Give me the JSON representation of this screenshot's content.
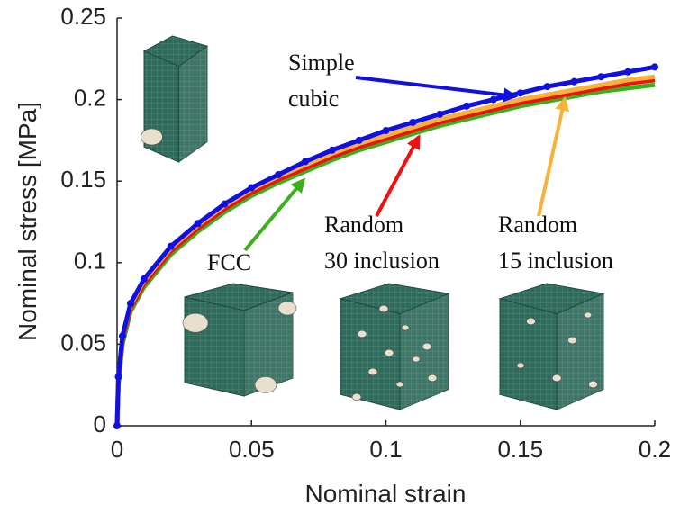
{
  "chart_data": {
    "type": "line",
    "xlabel": "Nominal strain",
    "ylabel": "Nominal stress [MPa]",
    "x": [
      0,
      0.0005,
      0.002,
      0.005,
      0.01,
      0.02,
      0.03,
      0.04,
      0.05,
      0.06,
      0.07,
      0.08,
      0.09,
      0.1,
      0.11,
      0.12,
      0.13,
      0.14,
      0.15,
      0.16,
      0.17,
      0.18,
      0.19,
      0.2
    ],
    "series": [
      {
        "color": "#1010e0",
        "marker": true,
        "values": [
          0,
          0.03,
          0.055,
          0.075,
          0.09,
          0.11,
          0.124,
          0.136,
          0.146,
          0.154,
          0.162,
          0.169,
          0.175,
          0.181,
          0.186,
          0.191,
          0.196,
          0.2,
          0.204,
          0.208,
          0.211,
          0.214,
          0.217,
          0.22
        ]
      },
      {
        "color": "#f7b23b",
        "marker": false,
        "values": [
          0,
          0.03,
          0.055,
          0.074,
          0.089,
          0.109,
          0.123,
          0.135,
          0.145,
          0.153,
          0.16,
          0.167,
          0.173,
          0.178,
          0.183,
          0.188,
          0.192,
          0.196,
          0.2,
          0.203,
          0.206,
          0.209,
          0.212,
          0.214
        ]
      },
      {
        "color": "#f01010",
        "marker": false,
        "values": [
          0,
          0.028,
          0.053,
          0.072,
          0.087,
          0.107,
          0.121,
          0.133,
          0.143,
          0.151,
          0.158,
          0.165,
          0.171,
          0.176,
          0.181,
          0.186,
          0.19,
          0.194,
          0.198,
          0.201,
          0.204,
          0.207,
          0.21,
          0.212
        ]
      },
      {
        "color": "#3ab01c",
        "marker": false,
        "values": [
          0,
          0.025,
          0.05,
          0.07,
          0.085,
          0.105,
          0.119,
          0.131,
          0.141,
          0.149,
          0.156,
          0.163,
          0.169,
          0.174,
          0.179,
          0.184,
          0.188,
          0.192,
          0.196,
          0.199,
          0.202,
          0.205,
          0.207,
          0.209
        ]
      }
    ],
    "xlim": [
      0,
      0.2
    ],
    "xticks": [
      0,
      0.05,
      0.1,
      0.15,
      0.2
    ],
    "ylim": [
      0,
      0.25
    ],
    "yticks": [
      0,
      0.05,
      0.1,
      0.15,
      0.2,
      0.25
    ],
    "annotations": [
      {
        "lines": [
          "Simple",
          "cubic"
        ],
        "color": "#1010e0"
      },
      {
        "lines": [
          "Random",
          "30 inclusion"
        ],
        "color": "#f01010"
      },
      {
        "lines": [
          "Random",
          "15 inclusion"
        ],
        "color": "#f7b23b"
      },
      {
        "lines": [
          "FCC"
        ],
        "color": "#3ab01c"
      }
    ]
  }
}
